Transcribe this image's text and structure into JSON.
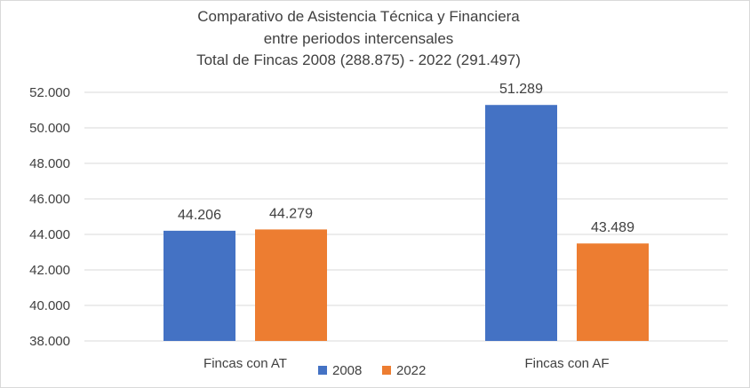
{
  "chart_data": {
    "type": "bar",
    "title_lines": [
      "Comparativo de Asistencia Técnica y Financiera",
      "entre periodos intercensales",
      "Total de Fincas 2008 (288.875) - 2022 (291.497)"
    ],
    "categories": [
      "Fincas con AT",
      "Fincas con AF"
    ],
    "series": [
      {
        "name": "2008",
        "color": "#4472c4",
        "values": [
          44206,
          51289
        ],
        "labels": [
          "44.206",
          "51.289"
        ]
      },
      {
        "name": "2022",
        "color": "#ed7d31",
        "values": [
          44279,
          43489
        ],
        "labels": [
          "44.279",
          "43.489"
        ]
      }
    ],
    "ylim": [
      38000,
      52000
    ],
    "y_ticks": [
      {
        "value": 38000,
        "label": "38.000"
      },
      {
        "value": 40000,
        "label": "40.000"
      },
      {
        "value": 42000,
        "label": "42.000"
      },
      {
        "value": 44000,
        "label": "44.000"
      },
      {
        "value": 46000,
        "label": "46.000"
      },
      {
        "value": 48000,
        "label": "48.000"
      },
      {
        "value": 50000,
        "label": "50.000"
      },
      {
        "value": 52000,
        "label": "52.000"
      }
    ],
    "grid": true,
    "legend": "bottom",
    "xlabel": "",
    "ylabel": ""
  }
}
